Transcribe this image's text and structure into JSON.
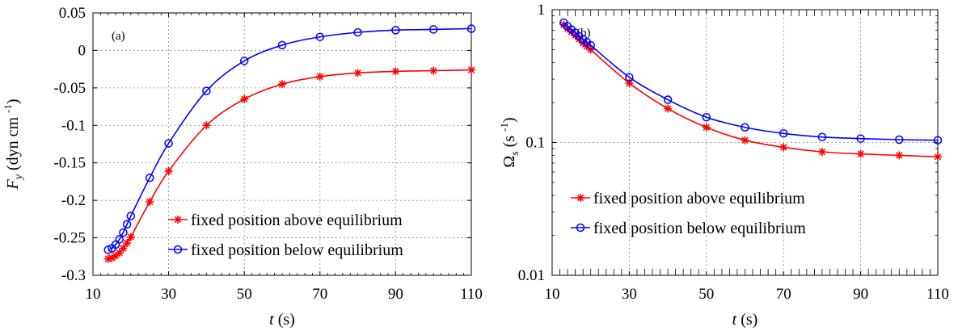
{
  "chart_data": [
    {
      "type": "line",
      "panel_label": "(a)",
      "xlabel": "t",
      "xlabel_unit": "(s)",
      "ylabel_symbol": "F",
      "ylabel_subscript": "y",
      "ylabel_unit": "(dyn cm",
      "ylabel_unit_exp": "-1",
      "ylabel_unit_close": ")",
      "xlim": [
        10,
        110
      ],
      "ylim": [
        -0.3,
        0.05
      ],
      "xticks": [
        10,
        30,
        50,
        70,
        90,
        110
      ],
      "xtick_labels": [
        "10",
        "30",
        "50",
        "70",
        "90",
        "110"
      ],
      "yticks": [
        -0.3,
        -0.25,
        -0.2,
        -0.15,
        -0.1,
        -0.05,
        0,
        0.05
      ],
      "ytick_labels": [
        "-0.3",
        "-0.25",
        "-0.2",
        "-0.15",
        "-0.1",
        "-0.05",
        "0",
        "0.05"
      ],
      "grid": true,
      "legend_position": "bottom-right",
      "series": [
        {
          "name": "fixed position above equilibrium",
          "color": "#ff0000",
          "marker": "asterisk",
          "x": [
            14,
            15,
            16,
            17,
            18,
            19,
            20,
            25,
            30,
            40,
            50,
            60,
            70,
            80,
            90,
            100,
            110
          ],
          "y": [
            -0.278,
            -0.277,
            -0.274,
            -0.27,
            -0.264,
            -0.257,
            -0.249,
            -0.202,
            -0.161,
            -0.1,
            -0.065,
            -0.045,
            -0.035,
            -0.03,
            -0.028,
            -0.027,
            -0.026
          ]
        },
        {
          "name": "fixed position below equilibrium",
          "color": "#0000ff",
          "marker": "circle",
          "x": [
            14,
            15,
            16,
            17,
            18,
            19,
            20,
            25,
            30,
            40,
            50,
            60,
            70,
            80,
            90,
            100,
            110
          ],
          "y": [
            -0.266,
            -0.264,
            -0.259,
            -0.252,
            -0.243,
            -0.232,
            -0.221,
            -0.17,
            -0.124,
            -0.054,
            -0.014,
            0.007,
            0.018,
            0.024,
            0.027,
            0.028,
            0.029
          ]
        }
      ]
    },
    {
      "type": "line",
      "panel_label": "(b)",
      "xlabel": "t",
      "xlabel_unit": "(s)",
      "ylabel_symbol": "Ω",
      "ylabel_subscript": "s",
      "ylabel_unit": "(s",
      "ylabel_unit_exp": "-1",
      "ylabel_unit_close": ")",
      "xlim": [
        10,
        110
      ],
      "ylim": [
        0.01,
        1
      ],
      "yscale": "log",
      "xticks": [
        10,
        30,
        50,
        70,
        90,
        110
      ],
      "xtick_labels": [
        "10",
        "30",
        "50",
        "70",
        "90",
        "110"
      ],
      "yticks": [
        0.01,
        0.1,
        1
      ],
      "ytick_labels": [
        "0.01",
        "0.1",
        "1"
      ],
      "grid": true,
      "legend_position": "lower-middle",
      "series": [
        {
          "name": "fixed position above equilibrium",
          "color": "#ff0000",
          "marker": "asterisk",
          "x": [
            13,
            14,
            15,
            16,
            17,
            18,
            19,
            20,
            30,
            40,
            50,
            60,
            70,
            80,
            90,
            100,
            110
          ],
          "y": [
            0.77,
            0.72,
            0.68,
            0.64,
            0.6,
            0.56,
            0.53,
            0.5,
            0.28,
            0.18,
            0.13,
            0.104,
            0.092,
            0.085,
            0.082,
            0.08,
            0.078
          ]
        },
        {
          "name": "fixed position below equilibrium",
          "color": "#0000ff",
          "marker": "circle",
          "x": [
            13,
            14,
            15,
            16,
            17,
            18,
            19,
            20,
            30,
            40,
            50,
            60,
            70,
            80,
            90,
            100,
            110
          ],
          "y": [
            0.8,
            0.75,
            0.71,
            0.67,
            0.63,
            0.6,
            0.57,
            0.54,
            0.31,
            0.21,
            0.155,
            0.13,
            0.117,
            0.11,
            0.107,
            0.105,
            0.104
          ]
        }
      ]
    }
  ]
}
